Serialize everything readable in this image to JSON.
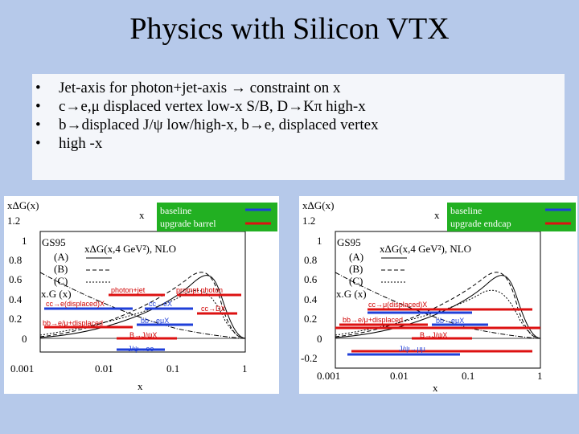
{
  "slide": {
    "title": "Physics with Silicon VTX",
    "bullets": [
      "Jet-axis for photon+jet-axis → constraint on x",
      "c→e,μ displaced vertex low-x S/B, D→Kπ high-x",
      "b→displaced J/ψ low/high-x, b→e, displaced vertex",
      "high -x"
    ]
  },
  "left_plot": {
    "ylabel": "xΔG(x)",
    "yticks": [
      "1.2",
      "1",
      "0.8",
      "0.6",
      "0.4",
      "0.2",
      "0"
    ],
    "xticks": [
      "0.001",
      "0.01",
      "0.1",
      "1"
    ],
    "xaxis_top": "x",
    "xaxis_bottom": "x",
    "legend": {
      "baseline": "baseline",
      "upgrade": "upgrade barrel"
    },
    "gs95": "GS95",
    "formula": "xΔG(x,4 GeV²), NLO",
    "curves": [
      "(A)",
      "(B)",
      "(C)"
    ],
    "xG": "x.G (x)",
    "labels": {
      "photon_jet": "photon+jet",
      "prompt_photon": "prompt photon",
      "cc_displaced": "cc→e(displaced)X",
      "cc_ex": "cc→eX",
      "cc_dx": "cc→DX",
      "bb_displaced": "bb→e/μ+displaced",
      "bb_mux": "bb→eμX",
      "b_jpsi": "B→J/ψX",
      "jpsi_ee": "J/ψ→ee"
    }
  },
  "right_plot": {
    "ylabel": "xΔG(x)",
    "yticks": [
      "1.2",
      "1",
      "0.8",
      "0.6",
      "0.4",
      "0.2",
      "0",
      "-0.2"
    ],
    "xticks": [
      "0.001",
      "0.01",
      "0.1",
      "1"
    ],
    "xaxis_top": "x",
    "xaxis_bottom": "x",
    "legend": {
      "baseline": "baseline",
      "upgrade": "upgrade endcap"
    },
    "gs95": "GS95",
    "formula": "xΔG(x,4 GeV²), NLO",
    "curves": [
      "(A)",
      "(B)",
      "(C)"
    ],
    "xG": "x.G (x)",
    "labels": {
      "cc_displaced": "cc→μ(displaced)X",
      "bb_displaced": "bb→e/μ+displaced",
      "bb_mux": "bb→eμX",
      "b_jpsi": "B→J/ψX",
      "jpsi_mumu": "J/ψ→μμ"
    }
  },
  "colors": {
    "baseline": "#1f3fd8",
    "upgrade": "#dd1111",
    "legend_bg": "#22b022",
    "background": "#b6c9ea"
  }
}
